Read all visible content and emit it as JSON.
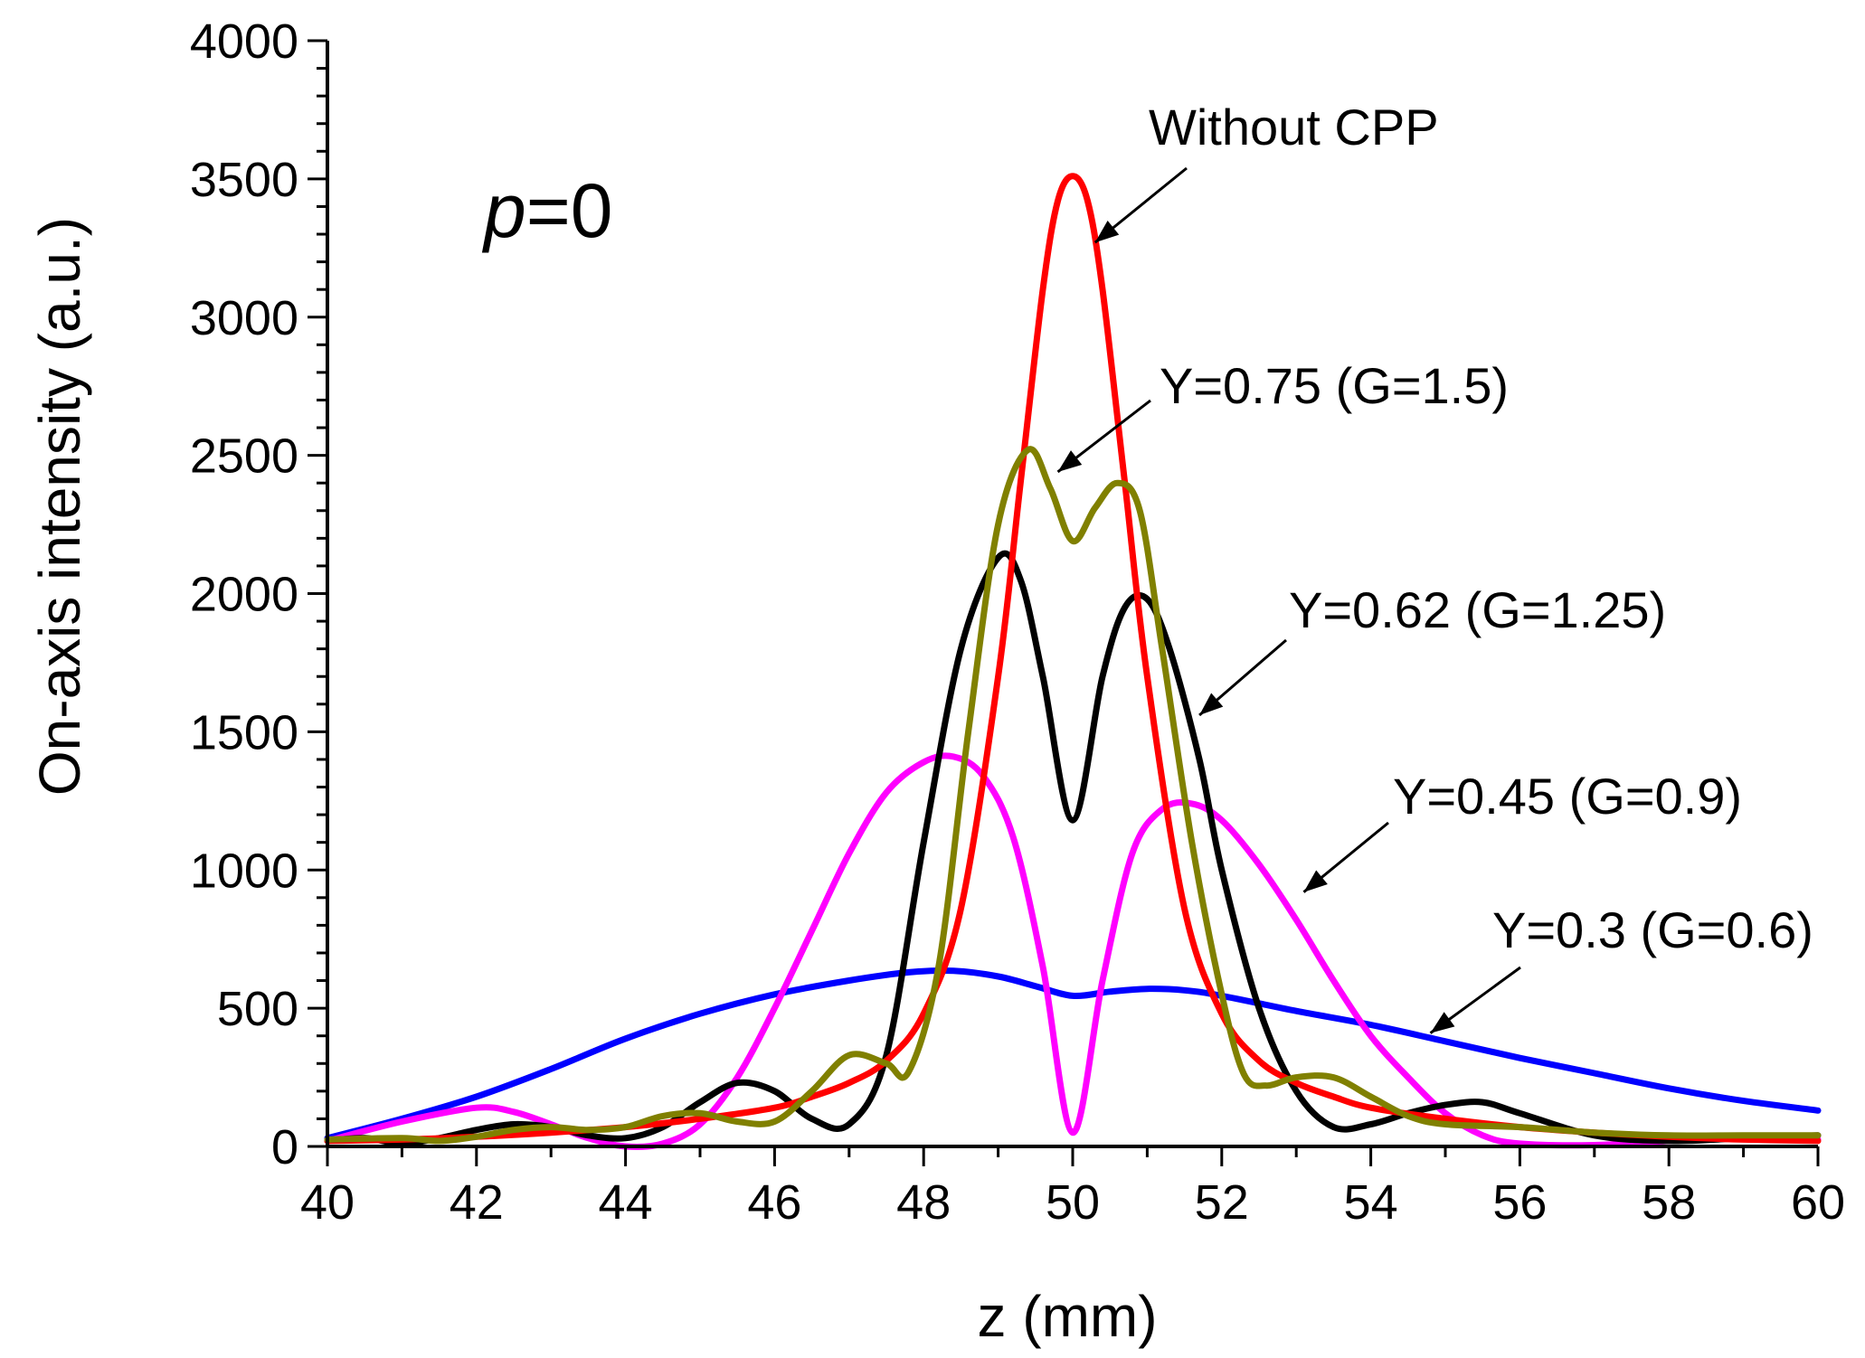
{
  "chart_data": {
    "type": "line",
    "title": "",
    "xlabel": "z (mm)",
    "ylabel": "On-axis intensity (a.u.)",
    "xlim": [
      40,
      60
    ],
    "ylim": [
      0,
      4000
    ],
    "xticks": [
      40,
      42,
      44,
      46,
      48,
      50,
      52,
      54,
      56,
      58,
      60
    ],
    "yticks": [
      0,
      500,
      1000,
      1500,
      2000,
      2500,
      3000,
      3500,
      4000
    ],
    "parameter_label": {
      "italic": "p",
      "rest": "=0"
    },
    "series": [
      {
        "name": "Y=0.3 (G=0.6)",
        "color": "#0000ff",
        "x": [
          40,
          41,
          42,
          43,
          44,
          45,
          46,
          47,
          47.8,
          48.4,
          49,
          49.5,
          50,
          50.5,
          51,
          51.5,
          52,
          53,
          54,
          55,
          56,
          57,
          58,
          59,
          60
        ],
        "y": [
          30,
          100,
          180,
          280,
          390,
          480,
          550,
          600,
          630,
          635,
          615,
          580,
          545,
          560,
          570,
          565,
          545,
          490,
          440,
          380,
          320,
          265,
          210,
          165,
          130
        ]
      },
      {
        "name": "Y=0.45 (G=0.9)",
        "color": "#ff00ff",
        "x": [
          40,
          41,
          42,
          42.5,
          43,
          43.5,
          44,
          44.5,
          45,
          45.5,
          46,
          46.5,
          47,
          47.5,
          48,
          48.4,
          48.8,
          49.2,
          49.6,
          50,
          50.4,
          50.8,
          51.2,
          51.6,
          52,
          52.5,
          53,
          53.5,
          54,
          54.5,
          55,
          55.5,
          56,
          57,
          58,
          59,
          60
        ],
        "y": [
          20,
          90,
          140,
          125,
          80,
          30,
          0,
          10,
          80,
          250,
          500,
          780,
          1060,
          1280,
          1390,
          1410,
          1340,
          1120,
          650,
          50,
          600,
          1060,
          1220,
          1240,
          1180,
          1020,
          820,
          600,
          400,
          250,
          120,
          40,
          10,
          5,
          20,
          30,
          25
        ]
      },
      {
        "name": "Y=0.62 (G=1.25)",
        "color": "#000000",
        "x": [
          40,
          40.5,
          41,
          41.5,
          42,
          42.5,
          43,
          43.5,
          44,
          44.5,
          45,
          45.5,
          46,
          46.5,
          47,
          47.5,
          48,
          48.5,
          49,
          49.3,
          49.6,
          50,
          50.4,
          50.7,
          51,
          51.3,
          51.7,
          52,
          52.5,
          53,
          53.5,
          54,
          54.5,
          55,
          55.5,
          56,
          57,
          58,
          59,
          60
        ],
        "y": [
          20,
          30,
          10,
          30,
          60,
          80,
          70,
          40,
          30,
          70,
          160,
          230,
          200,
          100,
          80,
          330,
          1100,
          1800,
          2130,
          2050,
          1700,
          1180,
          1700,
          1950,
          1980,
          1800,
          1400,
          1000,
          500,
          200,
          70,
          80,
          120,
          150,
          160,
          120,
          40,
          20,
          30,
          40
        ]
      },
      {
        "name": "Without CPP",
        "color": "#ff0000",
        "x": [
          40,
          41,
          42,
          43,
          44,
          45,
          46,
          46.5,
          47,
          47.5,
          48,
          48.5,
          49,
          49.3,
          49.6,
          49.8,
          50,
          50.2,
          50.4,
          50.7,
          51,
          51.5,
          52,
          52.5,
          53,
          53.5,
          54,
          55,
          56,
          57,
          58,
          59,
          60
        ],
        "y": [
          20,
          25,
          35,
          50,
          70,
          100,
          140,
          180,
          230,
          310,
          480,
          860,
          1700,
          2400,
          3100,
          3420,
          3510,
          3420,
          3100,
          2400,
          1700,
          860,
          480,
          310,
          230,
          180,
          140,
          100,
          70,
          50,
          35,
          25,
          20
        ]
      },
      {
        "name": "Y=0.75 (G=1.5)",
        "color": "#808000",
        "x": [
          40,
          41,
          41.5,
          42,
          42.5,
          43,
          43.5,
          44,
          44.5,
          45,
          45.5,
          46,
          46.5,
          47,
          47.5,
          47.8,
          48.2,
          48.6,
          49,
          49.4,
          49.7,
          50,
          50.3,
          50.6,
          50.9,
          51.2,
          51.6,
          52,
          52.3,
          52.6,
          53,
          53.5,
          54,
          54.5,
          55,
          56,
          57,
          58,
          59,
          60
        ],
        "y": [
          25,
          30,
          20,
          35,
          60,
          70,
          60,
          70,
          110,
          120,
          90,
          90,
          200,
          330,
          300,
          270,
          650,
          1500,
          2250,
          2520,
          2380,
          2190,
          2310,
          2400,
          2300,
          1800,
          1100,
          550,
          260,
          220,
          250,
          250,
          180,
          110,
          80,
          70,
          50,
          40,
          40,
          40
        ]
      }
    ],
    "annotations": [
      {
        "text": "Without CPP",
        "series": "Without CPP",
        "arrow_to": [
          50.3,
          3270
        ]
      },
      {
        "text": "Y=0.75 (G=1.5)",
        "series": "Y=0.75 (G=1.5)",
        "arrow_to": [
          49.8,
          2440
        ]
      },
      {
        "text": "Y=0.62 (G=1.25)",
        "series": "Y=0.62 (G=1.25)",
        "arrow_to": [
          51.7,
          1560
        ]
      },
      {
        "text": "Y=0.45 (G=0.9)",
        "series": "Y=0.45 (G=0.9)",
        "arrow_to": [
          53.1,
          920
        ]
      },
      {
        "text": "Y=0.3 (G=0.6)",
        "series": "Y=0.3 (G=0.6)",
        "arrow_to": [
          54.8,
          410
        ]
      }
    ]
  }
}
